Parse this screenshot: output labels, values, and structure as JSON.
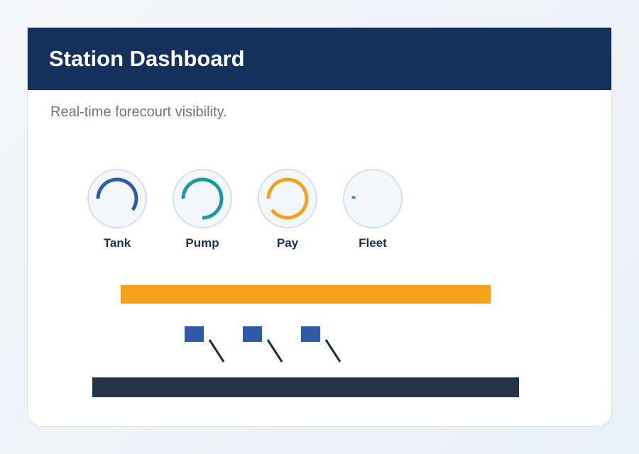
{
  "header": {
    "title": "Station Dashboard"
  },
  "subtitle": "Real-time forecourt visibility.",
  "gauges": [
    {
      "label": "Tank",
      "value": 60,
      "color": "#2f5aa8"
    },
    {
      "label": "Pump",
      "value": 75,
      "color": "#1a9aa0"
    },
    {
      "label": "Pay",
      "value": 90,
      "color": "#f5a11c"
    },
    {
      "label": "Fleet",
      "value": 2,
      "color": "#27a36a"
    }
  ]
}
